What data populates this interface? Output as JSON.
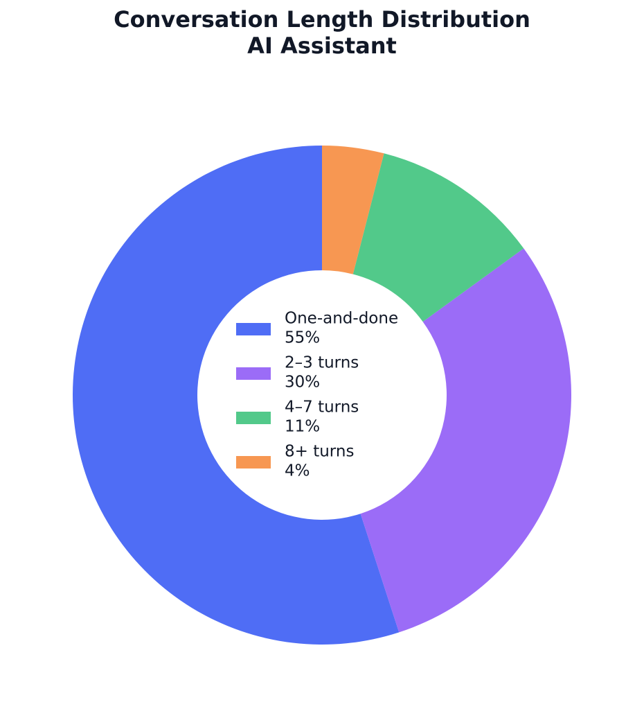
{
  "chart_data": {
    "type": "donut",
    "title": "Conversation Length Distribution",
    "subtitle": "AI Assistant",
    "categories": [
      "One-and-done",
      "2–3 turns",
      "4–7 turns",
      "8+ turns"
    ],
    "values": [
      55,
      30,
      11,
      4
    ],
    "value_labels": [
      "55%",
      "30%",
      "11%",
      "4%"
    ],
    "colors": [
      "#4f6df5",
      "#9b6cf7",
      "#52c98a",
      "#f79752"
    ],
    "start_angle": 90,
    "counterclockwise": true,
    "legend": "center"
  }
}
